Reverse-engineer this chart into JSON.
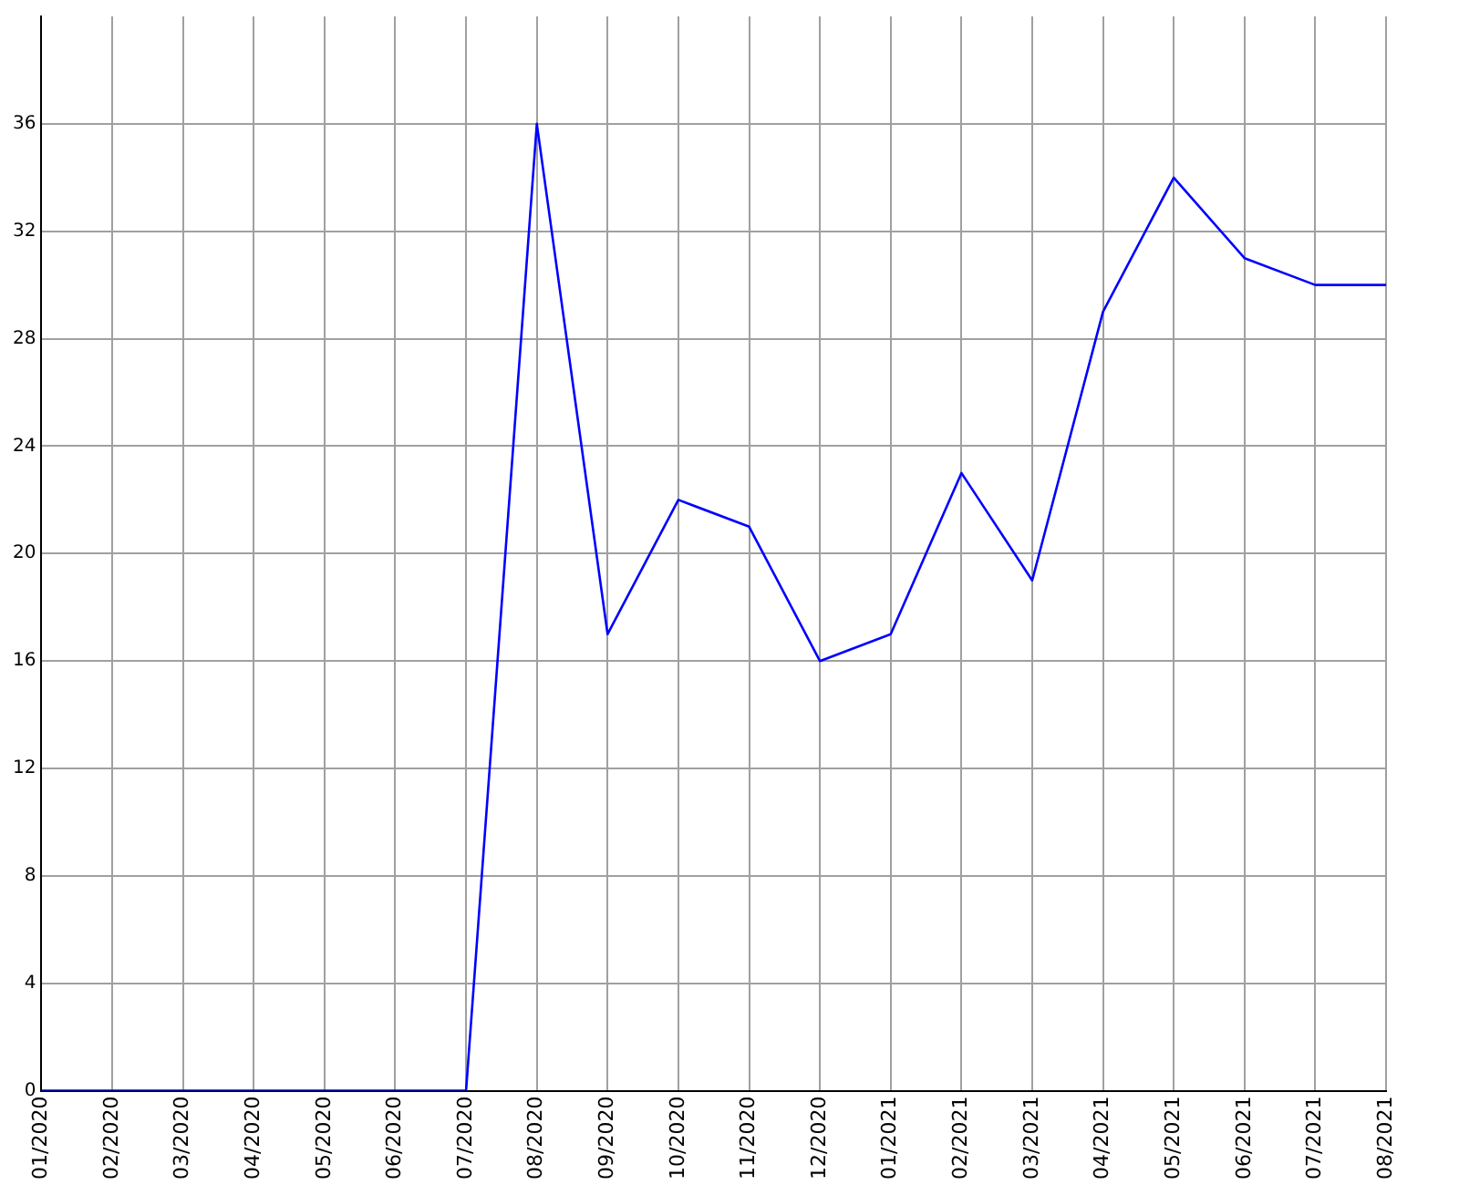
{
  "chart_data": {
    "type": "line",
    "categories": [
      "01/2020",
      "02/2020",
      "03/2020",
      "04/2020",
      "05/2020",
      "06/2020",
      "07/2020",
      "08/2020",
      "09/2020",
      "10/2020",
      "11/2020",
      "12/2020",
      "01/2021",
      "02/2021",
      "03/2021",
      "04/2021",
      "05/2021",
      "06/2021",
      "07/2021",
      "08/2021"
    ],
    "series": [
      {
        "color": "#0000ff",
        "values": [
          0,
          0,
          0,
          0,
          0,
          0,
          0,
          36,
          17,
          22,
          21,
          16,
          17,
          23,
          19,
          29,
          34,
          31,
          30,
          30
        ]
      }
    ],
    "ylim": [
      0,
      40
    ],
    "yticks": [
      0,
      4,
      8,
      12,
      16,
      20,
      24,
      28,
      32,
      36
    ],
    "grid": true,
    "legend": false,
    "marker": "none",
    "line_style": "solid"
  }
}
